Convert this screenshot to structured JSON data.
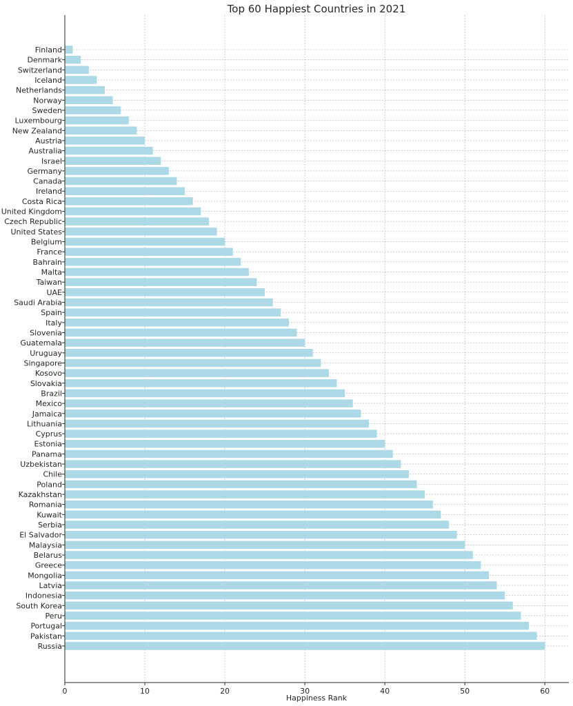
{
  "chart_data": {
    "type": "bar",
    "orientation": "horizontal",
    "title": "Top 60 Happiest Countries in 2021",
    "xlabel": "Happiness Rank",
    "ylabel": "",
    "xlim": [
      0,
      63
    ],
    "xticks": [
      0,
      10,
      20,
      30,
      40,
      50,
      60
    ],
    "grid": true,
    "bar_color": "#add8e6",
    "categories": [
      "Finland",
      "Denmark",
      "Switzerland",
      "Iceland",
      "Netherlands",
      "Norway",
      "Sweden",
      "Luxembourg",
      "New Zealand",
      "Austria",
      "Australia",
      "Israel",
      "Germany",
      "Canada",
      "Ireland",
      "Costa Rica",
      "United Kingdom",
      "Czech Republic",
      "United States",
      "Belgium",
      "France",
      "Bahrain",
      "Malta",
      "Taiwan",
      "UAE",
      "Saudi Arabia",
      "Spain",
      "Italy",
      "Slovenia",
      "Guatemala",
      "Uruguay",
      "Singapore",
      "Kosovo",
      "Slovakia",
      "Brazil",
      "Mexico",
      "Jamaica",
      "Lithuania",
      "Cyprus",
      "Estonia",
      "Panama",
      "Uzbekistan",
      "Chile",
      "Poland",
      "Kazakhstan",
      "Romania",
      "Kuwait",
      "Serbia",
      "El Salvador",
      "Malaysia",
      "Belarus",
      "Greece",
      "Mongolia",
      "Latvia",
      "Indonesia",
      "South Korea",
      "Peru",
      "Portugal",
      "Pakistan",
      "Russia"
    ],
    "values": [
      1,
      2,
      3,
      4,
      5,
      6,
      7,
      8,
      9,
      10,
      11,
      12,
      13,
      14,
      15,
      16,
      17,
      18,
      19,
      20,
      21,
      22,
      23,
      24,
      25,
      26,
      27,
      28,
      29,
      30,
      31,
      32,
      33,
      34,
      35,
      36,
      37,
      38,
      39,
      40,
      41,
      42,
      43,
      44,
      45,
      46,
      47,
      48,
      49,
      50,
      51,
      52,
      53,
      54,
      55,
      56,
      57,
      58,
      59,
      60
    ]
  }
}
